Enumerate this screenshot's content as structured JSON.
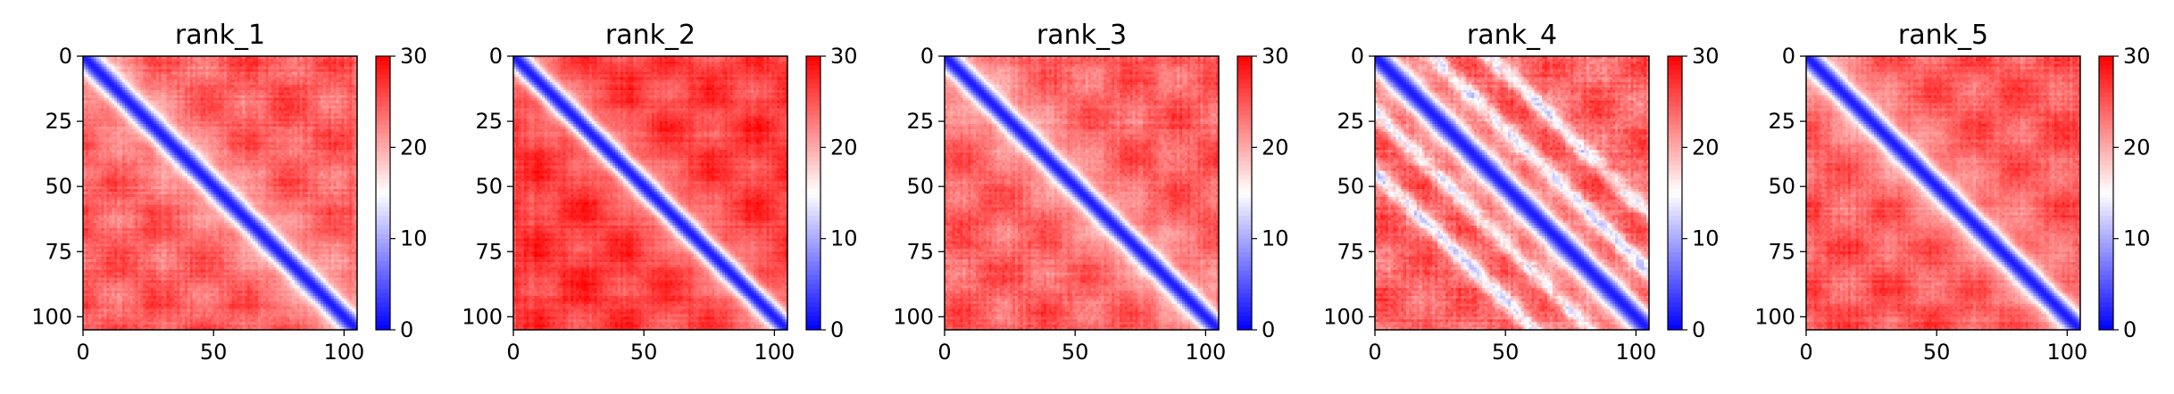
{
  "chart_data": [
    {
      "type": "heatmap",
      "title": "rank_1",
      "n": 105,
      "xticks": [
        0,
        50,
        100
      ],
      "yticks": [
        0,
        25,
        50,
        75,
        100
      ],
      "colorbar": {
        "vmin": 0,
        "vmax": 30,
        "ticks": [
          0,
          10,
          20,
          30
        ],
        "colormap": "bwr"
      },
      "pattern": {
        "diag_width": 4.0,
        "near_spread": 14,
        "background": 24.5,
        "off_bands": [],
        "noise": 2.2
      }
    },
    {
      "type": "heatmap",
      "title": "rank_2",
      "n": 105,
      "xticks": [
        0,
        50,
        100
      ],
      "yticks": [
        0,
        25,
        50,
        75,
        100
      ],
      "colorbar": {
        "vmin": 0,
        "vmax": 30,
        "ticks": [
          0,
          10,
          20,
          30
        ],
        "colormap": "bwr"
      },
      "pattern": {
        "diag_width": 3.8,
        "near_spread": 10,
        "background": 26.5,
        "off_bands": [],
        "noise": 1.8
      }
    },
    {
      "type": "heatmap",
      "title": "rank_3",
      "n": 105,
      "xticks": [
        0,
        50,
        100
      ],
      "yticks": [
        0,
        25,
        50,
        75,
        100
      ],
      "colorbar": {
        "vmin": 0,
        "vmax": 30,
        "ticks": [
          0,
          10,
          20,
          30
        ],
        "colormap": "bwr"
      },
      "pattern": {
        "diag_width": 3.8,
        "near_spread": 14,
        "background": 24.5,
        "off_bands": [],
        "noise": 2.4
      }
    },
    {
      "type": "heatmap",
      "title": "rank_4",
      "n": 105,
      "xticks": [
        0,
        50,
        100
      ],
      "yticks": [
        0,
        25,
        50,
        75,
        100
      ],
      "colorbar": {
        "vmin": 0,
        "vmax": 30,
        "ticks": [
          0,
          10,
          20,
          30
        ],
        "colormap": "bwr"
      },
      "pattern": {
        "diag_width": 4.5,
        "near_spread": 8,
        "background": 24.0,
        "off_bands": [
          22,
          44
        ],
        "noise": 3.0
      }
    },
    {
      "type": "heatmap",
      "title": "rank_5",
      "n": 105,
      "xticks": [
        0,
        50,
        100
      ],
      "yticks": [
        0,
        25,
        50,
        75,
        100
      ],
      "colorbar": {
        "vmin": 0,
        "vmax": 30,
        "ticks": [
          0,
          10,
          20,
          30
        ],
        "colormap": "bwr"
      },
      "pattern": {
        "diag_width": 4.0,
        "near_spread": 14,
        "background": 25.0,
        "off_bands": [],
        "noise": 2.3
      }
    }
  ]
}
